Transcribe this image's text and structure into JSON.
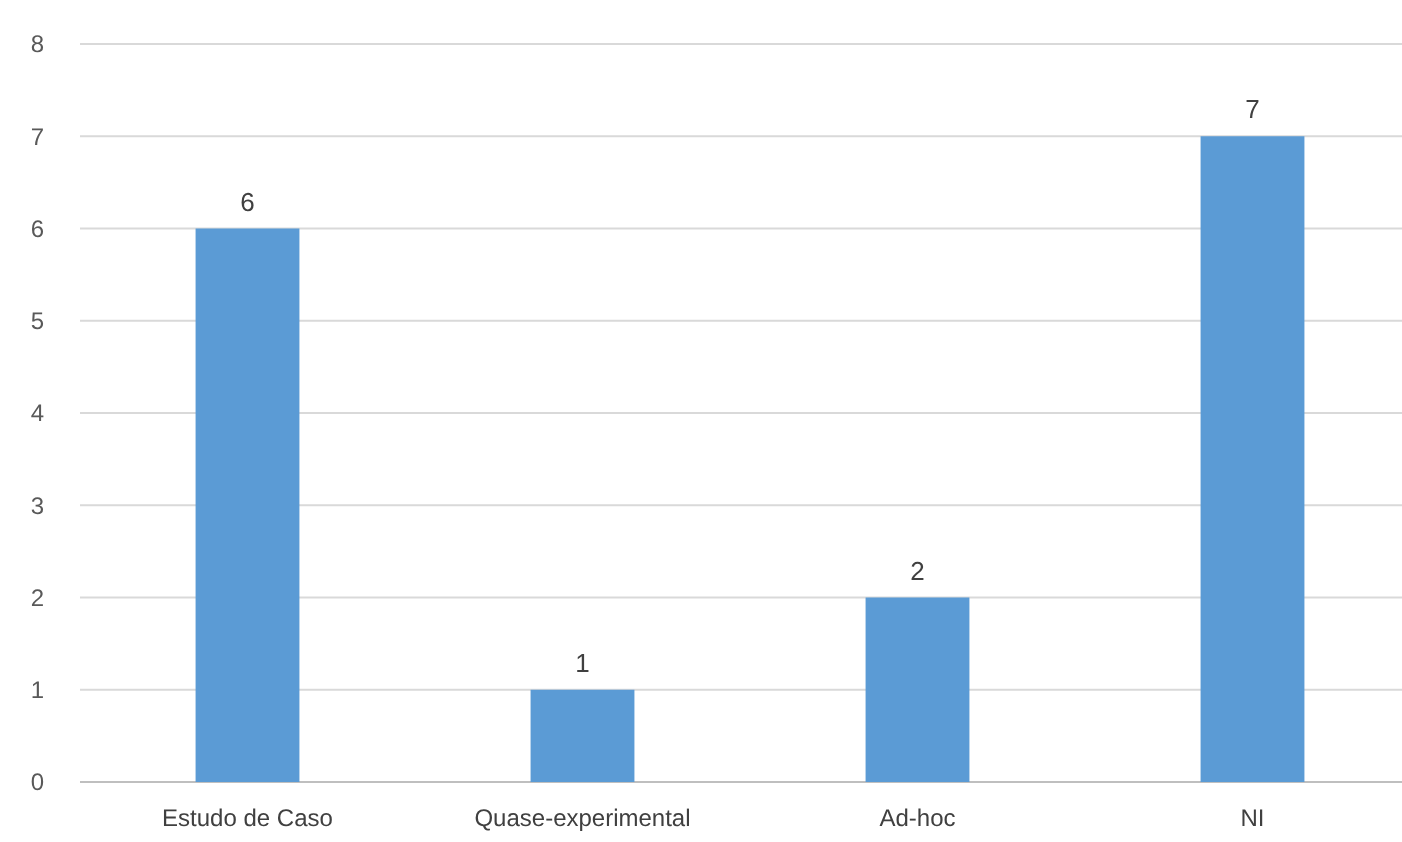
{
  "chart_data": {
    "type": "bar",
    "categories": [
      "Estudo de Caso",
      "Quase-experimental",
      "Ad-hoc",
      "NI"
    ],
    "values": [
      6,
      1,
      2,
      7
    ],
    "color": "#5b9bd5",
    "ylim": [
      0,
      8
    ],
    "yticks": [
      0,
      1,
      2,
      3,
      4,
      5,
      6,
      7,
      8
    ],
    "grid": "y",
    "data_labels": true
  }
}
